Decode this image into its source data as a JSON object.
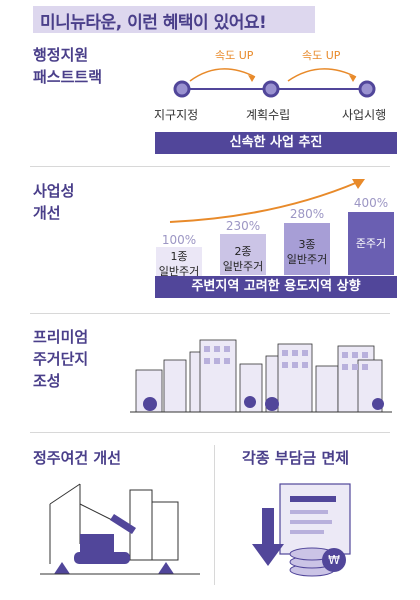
{
  "title": "미니뉴타운, 이런 혜택이 있어요!",
  "section1": {
    "heading_line1": "행정지원",
    "heading_line2": "패스트트랙",
    "speed_labels": [
      "속도 UP",
      "속도 UP"
    ],
    "steps": [
      "지구지정",
      "계획수립",
      "사업시행"
    ],
    "banner": "신속한 사업 추진"
  },
  "section2": {
    "heading_line1": "사업성",
    "heading_line2": "개선",
    "bars": [
      {
        "label_line1": "1종",
        "label_line2": "일반주거",
        "percent": "100%",
        "value": 100
      },
      {
        "label_line1": "2종",
        "label_line2": "일반주거",
        "percent": "230%",
        "value": 230
      },
      {
        "label_line1": "3종",
        "label_line2": "일반주거",
        "percent": "280%",
        "value": 280
      },
      {
        "label_line1": "준주거",
        "label_line2": "",
        "percent": "400%",
        "value": 400
      }
    ],
    "banner": "주변지역 고려한 용도지역 상향"
  },
  "section3": {
    "heading_line1": "프리미엄",
    "heading_line2": "주거단지",
    "heading_line3": "조성"
  },
  "section4": {
    "left_heading": "정주여건 개선",
    "right_heading": "각종 부담금 면제",
    "coin_symbol": "₩"
  },
  "colors": {
    "primary": "#51469a",
    "accent": "#e88a2a",
    "light_purple": "#ddd7ee"
  }
}
